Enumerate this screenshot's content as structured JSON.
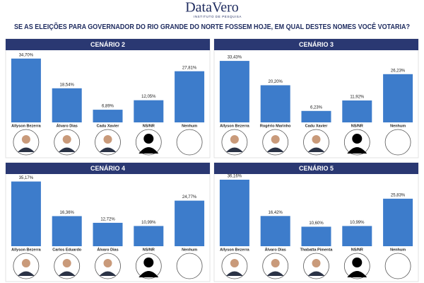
{
  "header": {
    "brand": "DataVero",
    "tagline": "INSTITUTO DE PESQUISA",
    "question": "SE AS ELEIÇÕES PARA GOVERNADOR DO RIO GRANDE DO NORTE FOSSEM HOJE, EM QUAL DESTES NOMES VOCÊ VOTARIA?"
  },
  "chart_data": [
    {
      "type": "bar",
      "title": "CENÁRIO 2",
      "color": "#3d7ccb",
      "ylim": [
        0,
        40
      ],
      "categories": [
        "Allyson Bezerra",
        "Álvaro Dias",
        "Cadu Xavier",
        "NS/NR",
        "Nenhum"
      ],
      "values": [
        34.7,
        18.54,
        6.89,
        12.05,
        27.81
      ],
      "value_labels": [
        "34,70%",
        "18,54%",
        "6,89%",
        "12,05%",
        "27,81%"
      ]
    },
    {
      "type": "bar",
      "title": "CENÁRIO 3",
      "color": "#3d7ccb",
      "ylim": [
        0,
        40
      ],
      "categories": [
        "Allyson Bezerra",
        "Rogério Marinho",
        "Cadu Xavier",
        "NS/NR",
        "Nenhum"
      ],
      "values": [
        33.43,
        20.2,
        6.23,
        11.92,
        26.23
      ],
      "value_labels": [
        "33,43%",
        "20,20%",
        "6,23%",
        "11,92%",
        "26,23%"
      ]
    },
    {
      "type": "bar",
      "title": "CENÁRIO 4",
      "color": "#3d7ccb",
      "ylim": [
        0,
        40
      ],
      "categories": [
        "Allyson Bezerra",
        "Carlos Eduardo",
        "Álvaro Dias",
        "NS/NR",
        "Nenhum"
      ],
      "values": [
        35.17,
        16.36,
        12.72,
        10.99,
        24.77
      ],
      "value_labels": [
        "35,17%",
        "16,36%",
        "12,72%",
        "10,99%",
        "24,77%"
      ]
    },
    {
      "type": "bar",
      "title": "CENÁRIO 5",
      "color": "#3d7ccb",
      "ylim": [
        0,
        40
      ],
      "categories": [
        "Allyson Bezerra",
        "Álvaro Dias",
        "Thabatta Pimenta",
        "NS/NR",
        "Nenhum"
      ],
      "values": [
        36.16,
        16.42,
        10.6,
        10.99,
        25.83
      ],
      "value_labels": [
        "36,16%",
        "16,42%",
        "10,60%",
        "10,99%",
        "25,83%"
      ]
    }
  ]
}
